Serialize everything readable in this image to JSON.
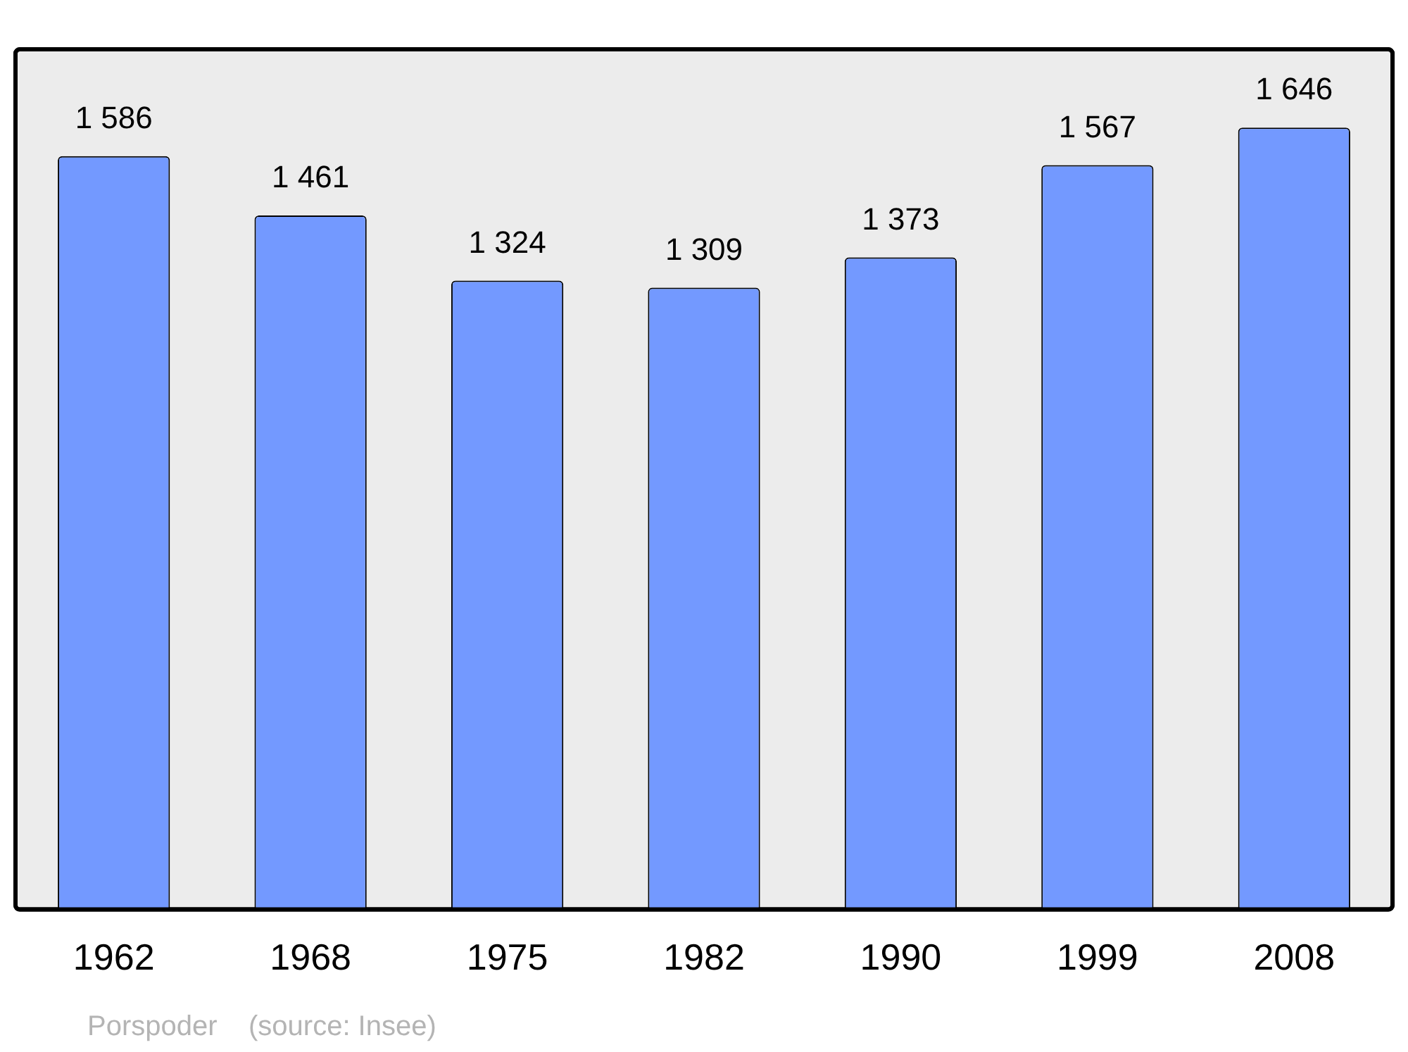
{
  "chart_data": {
    "type": "bar",
    "categories": [
      "1962",
      "1968",
      "1975",
      "1982",
      "1990",
      "1999",
      "2008"
    ],
    "values": [
      1586,
      1461,
      1324,
      1309,
      1373,
      1567,
      1646
    ],
    "color": "#7399ff",
    "ylim": [
      0,
      1811
    ],
    "tick_labels": "x",
    "grid": false,
    "legend": false,
    "data_labels": true,
    "annotations": [
      "Porspoder    (source: Insee)"
    ]
  }
}
